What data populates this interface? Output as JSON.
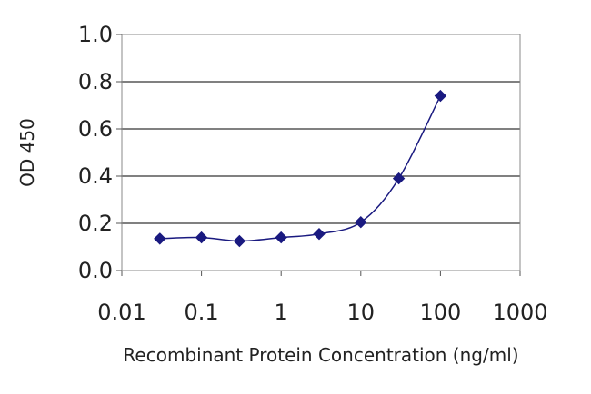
{
  "chart_data": {
    "type": "line",
    "xlabel": "Recombinant Protein Concentration (ng/ml)",
    "ylabel": "OD 450",
    "x_scale": "log",
    "xlim": [
      0.01,
      1000
    ],
    "ylim": [
      0.0,
      1.0
    ],
    "x_ticks": [
      0.01,
      0.1,
      1,
      10,
      100,
      1000
    ],
    "x_tick_labels": [
      "0.01",
      "0.1",
      "1",
      "10",
      "100",
      "1000"
    ],
    "y_ticks": [
      0.0,
      0.2,
      0.4,
      0.6,
      0.8,
      1.0
    ],
    "y_tick_labels": [
      "0.0",
      "0.2",
      "0.4",
      "0.6",
      "0.8",
      "1.0"
    ],
    "grid": "horizontal",
    "series": [
      {
        "color": "#1a1a80",
        "marker": "diamond",
        "x": [
          0.03,
          0.1,
          0.3,
          1,
          3,
          10,
          30,
          100
        ],
        "y": [
          0.135,
          0.14,
          0.125,
          0.14,
          0.155,
          0.205,
          0.39,
          0.74
        ]
      }
    ]
  }
}
